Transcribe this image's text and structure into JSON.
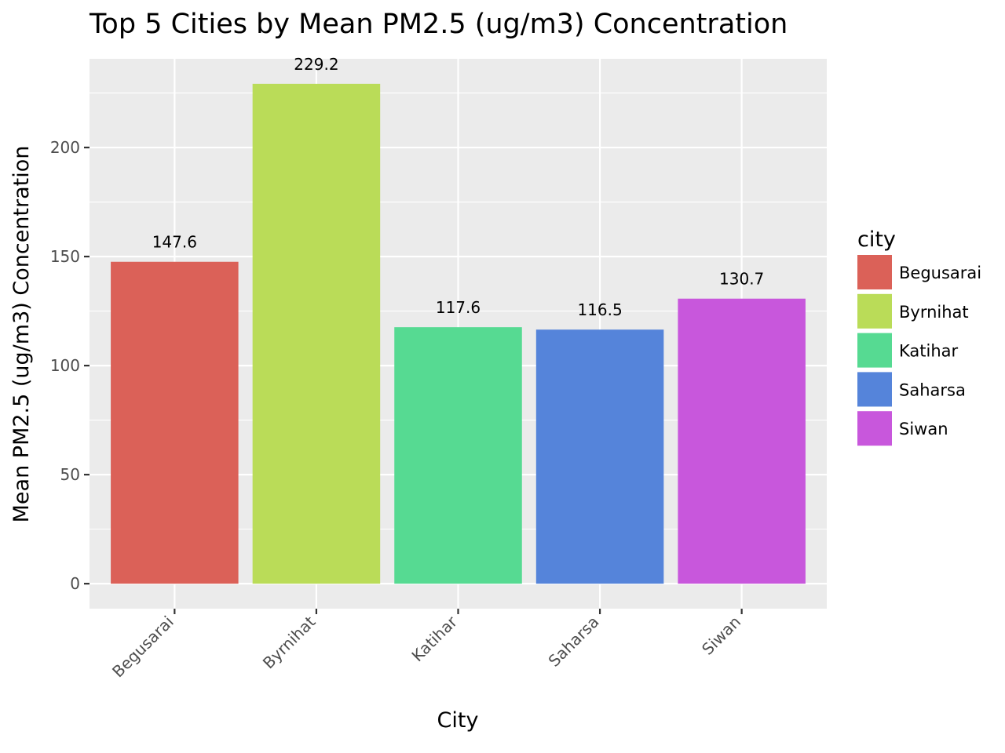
{
  "chart_data": {
    "type": "bar",
    "title": "Top 5 Cities by Mean PM2.5 (ug/m3) Concentration",
    "xlabel": "City",
    "ylabel": "Mean PM2.5 (ug/m3) Concentration",
    "categories": [
      "Begusarai",
      "Byrnihat",
      "Katihar",
      "Saharsa",
      "Siwan"
    ],
    "values": [
      147.6,
      229.2,
      117.6,
      116.5,
      130.7
    ],
    "data_labels": [
      "147.6",
      "229.2",
      "117.6",
      "116.5",
      "130.7"
    ],
    "colors": [
      "#DB6158",
      "#BADC58",
      "#56DA92",
      "#5584DA",
      "#C857DC"
    ],
    "yticks": [
      0,
      50,
      100,
      150,
      200
    ],
    "ylim": [
      -11.46,
      240.66
    ],
    "grid": true,
    "panel_background": "#EBEBEB",
    "grid_color": "#FFFFFF",
    "legend": {
      "title": "city",
      "placement": "right",
      "entries": [
        "Begusarai",
        "Byrnihat",
        "Katihar",
        "Saharsa",
        "Siwan"
      ]
    }
  }
}
